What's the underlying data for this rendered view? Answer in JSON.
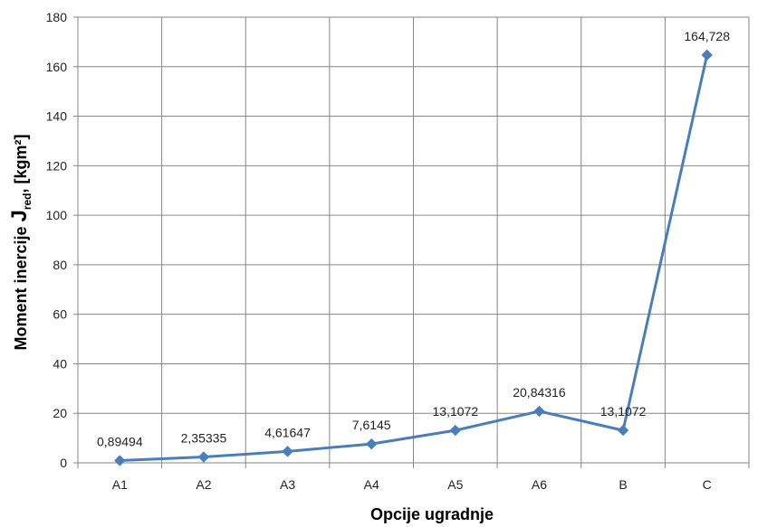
{
  "chart_data": {
    "type": "line",
    "categories": [
      "A1",
      "A2",
      "A3",
      "A4",
      "A5",
      "A6",
      "B",
      "C"
    ],
    "values": [
      0.89494,
      2.35335,
      4.61647,
      7.6145,
      13.1072,
      20.84316,
      13.1072,
      164.728
    ],
    "data_labels": [
      "0,89494",
      "2,35335",
      "4,61647",
      "7,6145",
      "13,1072",
      "20,84316",
      "13,1072",
      "164,728"
    ],
    "xlabel": "Opcije ugradnje",
    "ylabel": {
      "prefix": "Moment inercije ",
      "symbol": "J",
      "subscript": "red",
      "suffix": ", [kgm²]"
    },
    "ylim": [
      0,
      180
    ],
    "yticks": [
      0,
      20,
      40,
      60,
      80,
      100,
      120,
      140,
      160,
      180
    ],
    "grid": true,
    "legend": "none",
    "colors": {
      "series": "#4a7ebb",
      "grid": "#868686",
      "axis": "#868686"
    }
  }
}
